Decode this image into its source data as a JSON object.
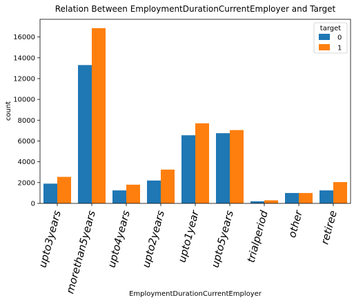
{
  "chart_data": {
    "type": "bar",
    "title": "Relation Between EmploymentDurationCurrentEmployer and Target",
    "xlabel": "EmploymentDurationCurrentEmployer",
    "ylabel": "count",
    "categories": [
      "upto3years",
      "morethan5years",
      "upto4years",
      "upto2years",
      "upto1year",
      "upto5years",
      "trialperiod",
      "other",
      "retiree"
    ],
    "series": [
      {
        "name": "0",
        "color": "#1f77b4",
        "values": [
          1900,
          13300,
          1250,
          2200,
          6550,
          6750,
          200,
          1000,
          1250
        ]
      },
      {
        "name": "1",
        "color": "#ff7f0e",
        "values": [
          2550,
          16850,
          1800,
          3250,
          7700,
          7050,
          300,
          1000,
          2050
        ]
      }
    ],
    "ylim": [
      0,
      17700
    ],
    "yticks": [
      0,
      2000,
      4000,
      6000,
      8000,
      10000,
      12000,
      14000,
      16000
    ],
    "legend": {
      "title": "target",
      "placement": "top-right"
    },
    "grid": false
  }
}
